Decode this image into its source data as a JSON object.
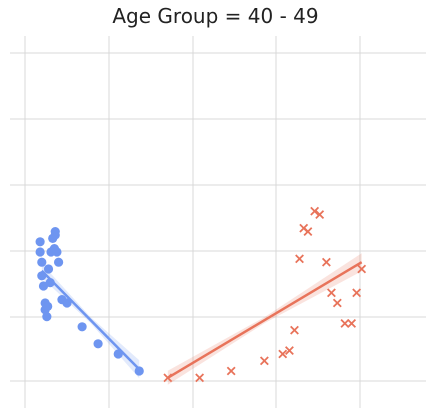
{
  "chart_data": {
    "type": "scatter",
    "title": "Age Group = 40 - 49",
    "xlabel": "",
    "ylabel": "",
    "xlim": [
      0,
      5
    ],
    "ylim": [
      0,
      1
    ],
    "grid": true,
    "legend": "none",
    "series": [
      {
        "marker": "circle",
        "color": "#6e95f0",
        "points": [
          [
            0.18,
            0.38
          ],
          [
            0.18,
            0.35
          ],
          [
            0.2,
            0.32
          ],
          [
            0.2,
            0.28
          ],
          [
            0.22,
            0.25
          ],
          [
            0.24,
            0.2
          ],
          [
            0.24,
            0.18
          ],
          [
            0.26,
            0.16
          ],
          [
            0.27,
            0.19
          ],
          [
            0.28,
            0.3
          ],
          [
            0.3,
            0.26
          ],
          [
            0.31,
            0.35
          ],
          [
            0.33,
            0.39
          ],
          [
            0.35,
            0.36
          ],
          [
            0.36,
            0.4
          ],
          [
            0.36,
            0.41
          ],
          [
            0.38,
            0.35
          ],
          [
            0.4,
            0.32
          ],
          [
            0.44,
            0.21
          ],
          [
            0.5,
            0.2
          ],
          [
            0.68,
            0.13
          ],
          [
            0.87,
            0.08
          ],
          [
            1.11,
            0.05
          ],
          [
            1.36,
            0.0
          ]
        ],
        "trend": {
          "x": [
            0.2,
            1.36
          ],
          "y": [
            0.295,
            0.005
          ]
        }
      },
      {
        "marker": "x",
        "color": "#e8735a",
        "points": [
          [
            1.7,
            -0.02
          ],
          [
            2.08,
            -0.02
          ],
          [
            2.46,
            0.0
          ],
          [
            2.86,
            0.03
          ],
          [
            3.08,
            0.05
          ],
          [
            3.16,
            0.06
          ],
          [
            3.22,
            0.12
          ],
          [
            3.28,
            0.33
          ],
          [
            3.33,
            0.42
          ],
          [
            3.38,
            0.41
          ],
          [
            3.46,
            0.47
          ],
          [
            3.52,
            0.46
          ],
          [
            3.6,
            0.32
          ],
          [
            3.66,
            0.23
          ],
          [
            3.73,
            0.2
          ],
          [
            3.82,
            0.14
          ],
          [
            3.9,
            0.14
          ],
          [
            3.96,
            0.23
          ],
          [
            4.02,
            0.3
          ]
        ],
        "trend": {
          "x": [
            1.7,
            4.02
          ],
          "y": [
            -0.02,
            0.32
          ]
        }
      }
    ]
  }
}
